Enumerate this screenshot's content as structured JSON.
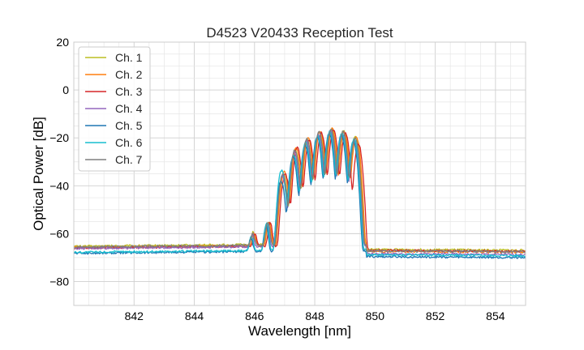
{
  "chart_data": {
    "type": "line",
    "title": "D4523 V20433 Reception Test",
    "xlabel": "Wavelength [nm]",
    "ylabel": "Optical Power [dB]",
    "xlim": [
      840,
      855
    ],
    "ylim": [
      -90,
      20
    ],
    "xticks": [
      842,
      844,
      846,
      848,
      850,
      852,
      854
    ],
    "yticks": [
      20,
      0,
      -20,
      -40,
      -60,
      -80
    ],
    "grid": true,
    "legend": "top-left",
    "series": [
      {
        "name": "Ch. 1",
        "color": "#bcbd22",
        "floor_left": -65.3,
        "floor_right": -66.6,
        "peaks": [
          [
            845.95,
            -61
          ],
          [
            846.45,
            -56
          ],
          [
            846.95,
            -35
          ],
          [
            847.35,
            -25
          ],
          [
            847.75,
            -21
          ],
          [
            848.15,
            -17.5
          ],
          [
            848.55,
            -16
          ],
          [
            848.95,
            -17
          ],
          [
            849.35,
            -19
          ]
        ]
      },
      {
        "name": "Ch. 2",
        "color": "#ff7f0e",
        "floor_left": -65.8,
        "floor_right": -67.4,
        "peaks": [
          [
            845.98,
            -61.5
          ],
          [
            846.48,
            -55.5
          ],
          [
            846.98,
            -34
          ],
          [
            847.38,
            -24
          ],
          [
            847.78,
            -20
          ],
          [
            848.18,
            -17
          ],
          [
            848.58,
            -16
          ],
          [
            848.98,
            -17.5
          ],
          [
            849.38,
            -19.5
          ]
        ]
      },
      {
        "name": "Ch. 3",
        "color": "#d62728",
        "floor_left": -66.0,
        "floor_right": -67.0,
        "peaks": [
          [
            846.02,
            -62
          ],
          [
            846.52,
            -56
          ],
          [
            847.02,
            -35
          ],
          [
            847.42,
            -24
          ],
          [
            847.82,
            -21
          ],
          [
            848.22,
            -18
          ],
          [
            848.62,
            -16.5
          ],
          [
            849.02,
            -18
          ],
          [
            849.45,
            -22.5
          ]
        ]
      },
      {
        "name": "Ch. 4",
        "color": "#9467bd",
        "floor_left": -66.2,
        "floor_right": -68.4,
        "peaks": [
          [
            845.92,
            -62
          ],
          [
            846.42,
            -56.5
          ],
          [
            846.92,
            -36
          ],
          [
            847.32,
            -26
          ],
          [
            847.72,
            -21
          ],
          [
            848.12,
            -18.5
          ],
          [
            848.52,
            -17
          ],
          [
            848.92,
            -18.5
          ],
          [
            849.32,
            -21
          ]
        ]
      },
      {
        "name": "Ch. 5",
        "color": "#1f77b4",
        "floor_left": -68.2,
        "floor_right": -69.6,
        "peaks": [
          [
            845.88,
            -63.5
          ],
          [
            846.38,
            -57
          ],
          [
            846.88,
            -38
          ],
          [
            847.28,
            -28
          ],
          [
            847.68,
            -23
          ],
          [
            848.08,
            -19.5
          ],
          [
            848.48,
            -18
          ],
          [
            848.88,
            -19
          ],
          [
            849.28,
            -21.5
          ]
        ]
      },
      {
        "name": "Ch. 6",
        "color": "#17becf",
        "floor_left": -67.8,
        "floor_right": -68.8,
        "peaks": [
          [
            845.9,
            -62.5
          ],
          [
            846.4,
            -56
          ],
          [
            846.9,
            -33.5
          ],
          [
            847.3,
            -27
          ],
          [
            847.7,
            -22
          ],
          [
            848.1,
            -19
          ],
          [
            848.5,
            -17.5
          ],
          [
            848.9,
            -18
          ],
          [
            849.3,
            -20.5
          ]
        ]
      },
      {
        "name": "Ch. 7",
        "color": "#7f7f7f",
        "floor_left": -65.6,
        "floor_right": -67.2,
        "peaks": [
          [
            845.94,
            -61.5
          ],
          [
            846.44,
            -55.5
          ],
          [
            846.94,
            -35
          ],
          [
            847.34,
            -25
          ],
          [
            847.74,
            -20.5
          ],
          [
            848.14,
            -17.5
          ],
          [
            848.54,
            -16.5
          ],
          [
            848.94,
            -17.5
          ],
          [
            849.34,
            -20
          ]
        ]
      }
    ]
  }
}
